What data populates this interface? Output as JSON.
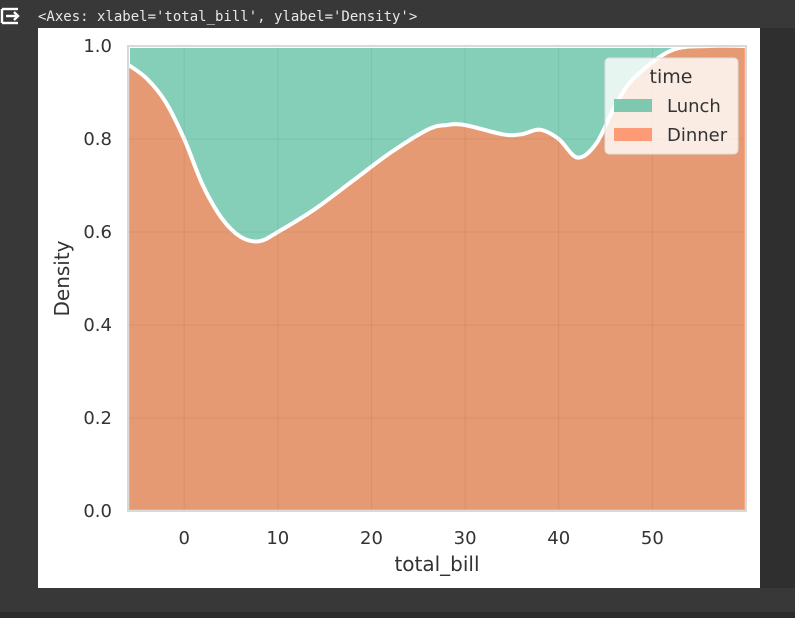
{
  "output": {
    "repr_text": "<Axes: xlabel='total_bill', ylabel='Density'>"
  },
  "icons": {
    "output_toggle": "output-collapse-icon"
  },
  "colors": {
    "lunch": "#66c2a5",
    "dinner": "#fc8d62",
    "boundary": "#ffffff",
    "grid": "#dcdcdc"
  },
  "chart_data": {
    "type": "area",
    "stacked": true,
    "normalized": true,
    "xlabel": "total_bill",
    "ylabel": "Density",
    "xlim": [
      -6,
      60
    ],
    "ylim": [
      0,
      1
    ],
    "xticks": [
      "0",
      "10",
      "20",
      "30",
      "40",
      "50"
    ],
    "yticks": [
      "0.0",
      "0.2",
      "0.4",
      "0.6",
      "0.8",
      "1.0"
    ],
    "grid": true,
    "legend": {
      "title": "time",
      "placement": "top-right",
      "entries": [
        "Lunch",
        "Dinner"
      ]
    },
    "x": [
      -6,
      -4,
      -2,
      0,
      2,
      4,
      6,
      8,
      10,
      14,
      18,
      22,
      26,
      28,
      30,
      34,
      36,
      38,
      40,
      42,
      44,
      46,
      48,
      52,
      56,
      60
    ],
    "series": [
      {
        "name": "Dinner",
        "values": [
          0.96,
          0.93,
          0.88,
          0.8,
          0.7,
          0.63,
          0.59,
          0.58,
          0.6,
          0.65,
          0.71,
          0.77,
          0.82,
          0.83,
          0.83,
          0.81,
          0.81,
          0.82,
          0.8,
          0.76,
          0.79,
          0.87,
          0.93,
          0.99,
          1.0,
          1.0
        ]
      },
      {
        "name": "Lunch",
        "values": [
          0.04,
          0.07,
          0.12,
          0.2,
          0.3,
          0.37,
          0.41,
          0.42,
          0.4,
          0.35,
          0.29,
          0.23,
          0.18,
          0.17,
          0.17,
          0.19,
          0.19,
          0.18,
          0.2,
          0.24,
          0.21,
          0.13,
          0.07,
          0.01,
          0.0,
          0.0
        ]
      }
    ]
  }
}
